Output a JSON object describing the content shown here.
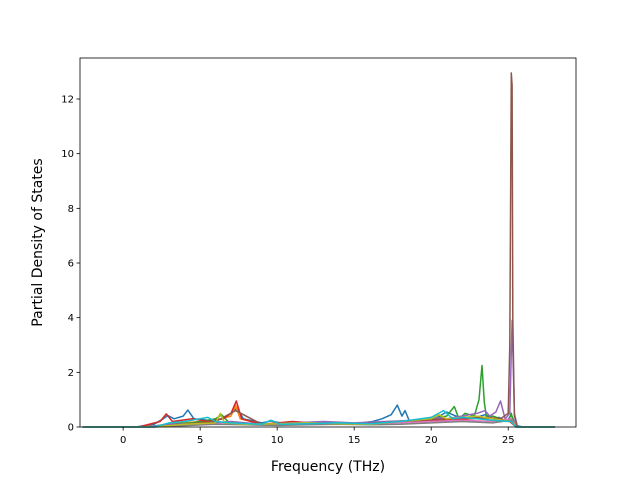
{
  "chart_data": {
    "type": "line",
    "title": "",
    "xlabel": "Frequency (THz)",
    "ylabel": "Partial Density of States",
    "xlim": [
      -2.8,
      29.4
    ],
    "ylim": [
      0,
      13.5
    ],
    "xticks": [
      0,
      5,
      10,
      15,
      20,
      25
    ],
    "yticks": [
      0,
      2,
      4,
      6,
      8,
      10,
      12
    ],
    "grid": false,
    "legend": "none",
    "colors": [
      "#1f77b4",
      "#ff7f0e",
      "#2ca02c",
      "#d62728",
      "#9467bd",
      "#8c564b",
      "#e377c2",
      "#7f7f7f",
      "#bcbd22",
      "#17becf"
    ],
    "series": [
      {
        "x": [
          -2.6,
          0.8,
          2.0,
          2.6,
          2.9,
          3.3,
          3.9,
          4.2,
          4.6,
          5.5,
          6.5,
          7.0,
          7.4,
          7.8,
          9.0,
          9.6,
          10.5,
          12.0,
          13.5,
          15.0,
          16.2,
          16.8,
          17.4,
          17.8,
          18.1,
          18.3,
          18.6,
          19.5,
          20.4,
          21.0,
          21.6,
          22.2,
          22.8,
          23.2,
          23.5,
          24.0,
          24.4,
          24.9,
          25.2,
          25.5,
          26.0,
          28.0
        ],
        "y": [
          0,
          0,
          0.1,
          0.3,
          0.42,
          0.3,
          0.4,
          0.62,
          0.3,
          0.25,
          0.3,
          0.5,
          0.7,
          0.3,
          0.15,
          0.22,
          0.12,
          0.15,
          0.18,
          0.12,
          0.2,
          0.3,
          0.45,
          0.8,
          0.4,
          0.6,
          0.2,
          0.25,
          0.35,
          0.55,
          0.4,
          0.3,
          0.3,
          0.4,
          0.45,
          0.3,
          0.35,
          0.2,
          0.45,
          0.05,
          0,
          0
        ]
      },
      {
        "x": [
          -2.6,
          1.0,
          2.2,
          3.0,
          4.0,
          5.0,
          6.0,
          7.0,
          7.3,
          7.6,
          9.0,
          11.0,
          13.0,
          15.0,
          17.0,
          19.0,
          20.5,
          21.5,
          22.5,
          23.3,
          24.0,
          25.2,
          25.6,
          28.0
        ],
        "y": [
          0,
          0,
          0.05,
          0.12,
          0.15,
          0.2,
          0.25,
          0.4,
          0.8,
          0.3,
          0.1,
          0.12,
          0.15,
          0.1,
          0.15,
          0.2,
          0.3,
          0.25,
          0.3,
          0.35,
          0.2,
          0.3,
          0,
          0
        ]
      },
      {
        "x": [
          -2.6,
          1.5,
          3.0,
          4.5,
          6.0,
          6.4,
          6.8,
          8.0,
          10.0,
          12.0,
          14.0,
          16.0,
          18.0,
          20.0,
          21.0,
          21.5,
          21.8,
          22.2,
          22.8,
          23.1,
          23.3,
          23.45,
          23.6,
          24.0,
          24.5,
          25.0,
          25.2,
          25.35,
          25.6,
          28.0
        ],
        "y": [
          0,
          0,
          0.1,
          0.15,
          0.3,
          0.45,
          0.2,
          0.1,
          0.1,
          0.12,
          0.1,
          0.15,
          0.2,
          0.3,
          0.4,
          0.75,
          0.3,
          0.5,
          0.4,
          1.0,
          2.25,
          0.9,
          0.3,
          0.4,
          0.3,
          0.2,
          0.5,
          0.1,
          0,
          0
        ]
      },
      {
        "x": [
          -2.6,
          1.0,
          2.4,
          2.8,
          3.2,
          4.5,
          5.5,
          6.5,
          7.0,
          7.35,
          7.7,
          9.0,
          11.0,
          13.0,
          15.0,
          17.0,
          19.0,
          21.0,
          22.5,
          23.5,
          24.5,
          25.1,
          25.5,
          28.0
        ],
        "y": [
          0,
          0,
          0.2,
          0.48,
          0.2,
          0.3,
          0.2,
          0.3,
          0.5,
          0.95,
          0.3,
          0.1,
          0.2,
          0.12,
          0.1,
          0.15,
          0.2,
          0.25,
          0.3,
          0.35,
          0.3,
          0.2,
          0,
          0
        ]
      },
      {
        "x": [
          -2.6,
          1.5,
          3.0,
          5.0,
          7.0,
          9.0,
          11.0,
          13.0,
          15.0,
          17.0,
          19.0,
          20.0,
          21.0,
          22.0,
          23.0,
          23.5,
          23.8,
          24.2,
          24.5,
          24.8,
          25.1,
          25.25,
          25.4,
          25.6,
          28.0
        ],
        "y": [
          0,
          0,
          0.1,
          0.12,
          0.2,
          0.1,
          0.15,
          0.2,
          0.15,
          0.2,
          0.25,
          0.35,
          0.3,
          0.4,
          0.5,
          0.6,
          0.4,
          0.55,
          0.95,
          0.3,
          0.5,
          3.9,
          0.5,
          0,
          0
        ]
      },
      {
        "x": [
          -2.6,
          2.0,
          4.0,
          6.0,
          7.3,
          9.0,
          12.0,
          15.0,
          18.0,
          21.0,
          23.0,
          24.5,
          25.0,
          25.1,
          25.2,
          25.25,
          25.3,
          25.4,
          25.6,
          28.0
        ],
        "y": [
          0,
          0,
          0.1,
          0.2,
          0.6,
          0.1,
          0.15,
          0.1,
          0.2,
          0.3,
          0.35,
          0.3,
          0.5,
          3.0,
          12.95,
          12.5,
          4.0,
          0.4,
          0,
          0
        ]
      },
      {
        "x": [
          -2.6,
          2.0,
          4.0,
          6.0,
          8.0,
          10.0,
          12.0,
          14.0,
          16.0,
          18.0,
          20.0,
          22.0,
          24.0,
          25.2,
          25.5,
          28.0
        ],
        "y": [
          0,
          0,
          0.08,
          0.12,
          0.1,
          0.08,
          0.1,
          0.12,
          0.1,
          0.15,
          0.2,
          0.25,
          0.2,
          0.3,
          0,
          0
        ]
      },
      {
        "x": [
          -2.6,
          2.0,
          4.0,
          6.0,
          8.0,
          10.0,
          12.0,
          14.0,
          16.0,
          18.0,
          20.0,
          22.0,
          24.0,
          25.2,
          25.5,
          28.0
        ],
        "y": [
          0,
          0,
          0.05,
          0.1,
          0.08,
          0.06,
          0.08,
          0.1,
          0.08,
          0.1,
          0.15,
          0.2,
          0.15,
          0.25,
          0,
          0
        ]
      },
      {
        "x": [
          -2.6,
          2.0,
          4.0,
          6.0,
          6.3,
          6.6,
          8.0,
          10.0,
          12.0,
          14.0,
          16.0,
          18.0,
          20.0,
          20.5,
          21.0,
          22.0,
          23.0,
          24.0,
          25.2,
          25.5,
          28.0
        ],
        "y": [
          0,
          0,
          0.1,
          0.15,
          0.5,
          0.15,
          0.1,
          0.12,
          0.15,
          0.12,
          0.1,
          0.2,
          0.3,
          0.45,
          0.3,
          0.35,
          0.4,
          0.3,
          0.2,
          0,
          0
        ]
      },
      {
        "x": [
          -2.6,
          2.0,
          3.0,
          4.0,
          5.5,
          6.0,
          7.0,
          9.0,
          9.6,
          10.2,
          12.0,
          14.0,
          16.0,
          18.0,
          20.0,
          20.8,
          21.4,
          22.0,
          23.0,
          24.0,
          25.2,
          25.5,
          28.0
        ],
        "y": [
          0,
          0,
          0.15,
          0.2,
          0.35,
          0.2,
          0.15,
          0.1,
          0.25,
          0.1,
          0.12,
          0.15,
          0.12,
          0.2,
          0.35,
          0.6,
          0.3,
          0.35,
          0.3,
          0.25,
          0.2,
          0,
          0
        ]
      }
    ]
  }
}
